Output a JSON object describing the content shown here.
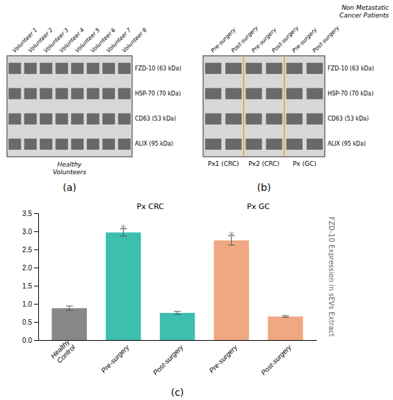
{
  "chart_data": [
    {
      "type": "blot",
      "title": "(a)",
      "categories": [
        "Volunteer 1",
        "Volunteer 2",
        "Volunteer 3",
        "Volunteer 4",
        "Volunteer 5",
        "Volunteer 6",
        "Volunteer 7",
        "Volunteer 8"
      ],
      "rows": [
        "FZD-10 (63 kDa)",
        "HSP-70 (70 kDa)",
        "CD63 (53 kDa)",
        "ALIX (95 kDa)"
      ],
      "annotations": [
        "Healthy\nVolunteers"
      ]
    },
    {
      "type": "blot",
      "title": "(b)",
      "categories": [
        "Pre-surgery",
        "Post-surgery",
        "Pre-surgery",
        "Post-surgery",
        "Pre-surgery",
        "Post-surgery"
      ],
      "rows": [
        "FZD-10 (63 kDa)",
        "HSP-70 (70 kDa)",
        "CD63 (53 kDa)",
        "ALIX (95 kDa)"
      ],
      "groups": [
        "Px1 (CRC)",
        "Px2 (CRC)",
        "Px (GC)"
      ],
      "annotations": [
        "Non Metastatic\nCancer Patients"
      ]
    },
    {
      "type": "bar",
      "title": "(c)",
      "categories": [
        "Healthy\nControl",
        "Pre-surgery",
        "Post-surgery",
        "Pre-surgery",
        "Post-surgery"
      ],
      "values": [
        0.88,
        2.97,
        0.75,
        2.75,
        0.65
      ],
      "errors": [
        0.06,
        0.1,
        0.04,
        0.13,
        0.025
      ],
      "colors": [
        "#888888",
        "#3DBFB0",
        "#3DBFB0",
        "#F0A882",
        "#F0A882"
      ],
      "ylabel": "FZD-10 Expression in sEVs Extract",
      "ylim": [
        0,
        3.5
      ],
      "yticks": [
        {
          "value": 0,
          "label": "0.0"
        },
        0.5,
        {
          "value": 1.0,
          "label": "1.0"
        },
        1.5,
        {
          "value": 2.0,
          "label": "2.0"
        },
        2.5,
        {
          "value": 3.0,
          "label": "3.0"
        },
        3.5
      ],
      "grid": false,
      "annotations": [
        {
          "text": "Px CRC",
          "categories": [
            1,
            2
          ]
        },
        {
          "text": "Px GC",
          "categories": [
            3,
            4
          ]
        },
        {
          "text": "*",
          "categories": [
            1
          ]
        },
        {
          "text": "*",
          "categories": [
            3
          ]
        }
      ]
    }
  ]
}
